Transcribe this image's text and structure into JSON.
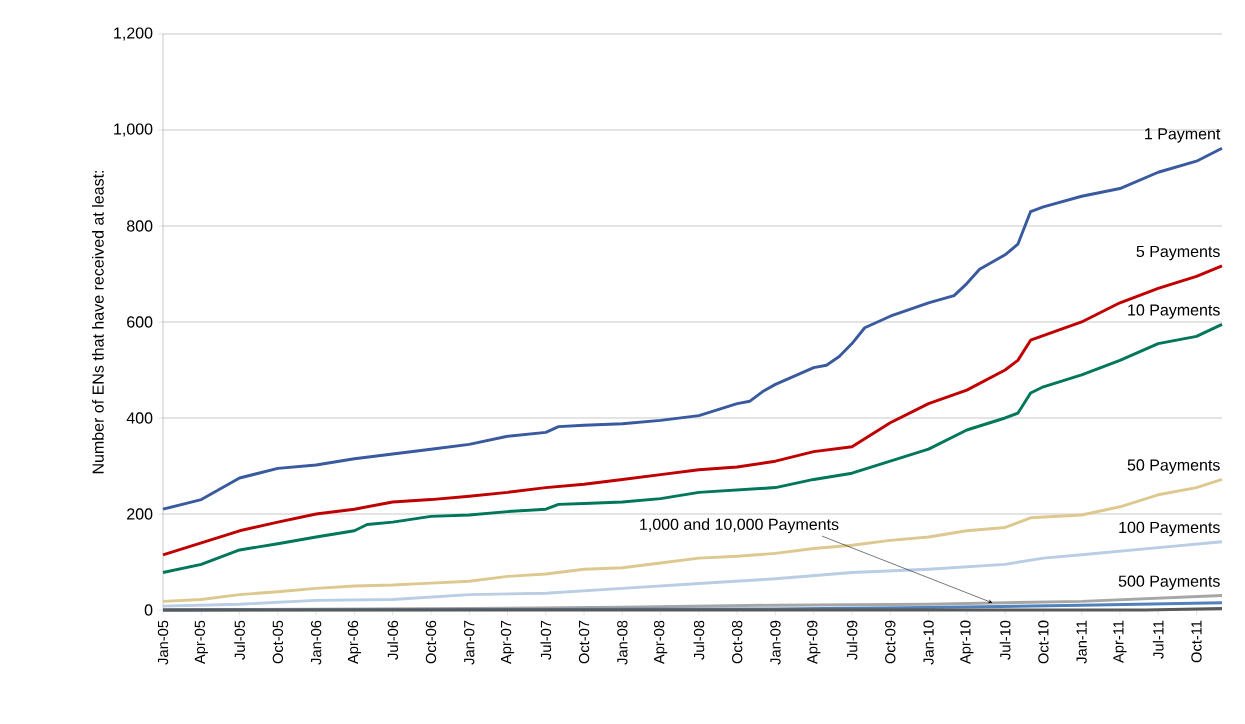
{
  "chart_data": {
    "type": "line",
    "ylabel": "Number of ENs that have received at least:",
    "xlim": [
      "2005-01",
      "2011-12"
    ],
    "xticks": [
      {
        "value": "2005-01",
        "label": "Jan-05"
      },
      {
        "value": "2005-04",
        "label": "Apr-05"
      },
      {
        "value": "2005-07",
        "label": "Jul-05"
      },
      {
        "value": "2005-10",
        "label": "Oct-05"
      },
      {
        "value": "2006-01",
        "label": "Jan-06"
      },
      {
        "value": "2006-04",
        "label": "Apr-06"
      },
      {
        "value": "2006-07",
        "label": "Jul-06"
      },
      {
        "value": "2006-10",
        "label": "Oct-06"
      },
      {
        "value": "2007-01",
        "label": "Jan-07"
      },
      {
        "value": "2007-04",
        "label": "Apr-07"
      },
      {
        "value": "2007-07",
        "label": "Jul-07"
      },
      {
        "value": "2007-10",
        "label": "Oct-07"
      },
      {
        "value": "2008-01",
        "label": "Jan-08"
      },
      {
        "value": "2008-04",
        "label": "Apr-08"
      },
      {
        "value": "2008-07",
        "label": "Jul-08"
      },
      {
        "value": "2008-10",
        "label": "Oct-08"
      },
      {
        "value": "2009-01",
        "label": "Jan-09"
      },
      {
        "value": "2009-04",
        "label": "Apr-09"
      },
      {
        "value": "2009-07",
        "label": "Jul-09"
      },
      {
        "value": "2009-10",
        "label": "Oct-09"
      },
      {
        "value": "2010-01",
        "label": "Jan-10"
      },
      {
        "value": "2010-04",
        "label": "Apr-10"
      },
      {
        "value": "2010-07",
        "label": "Jul-10"
      },
      {
        "value": "2010-10",
        "label": "Oct-10"
      },
      {
        "value": "2011-01",
        "label": "Jan-11"
      },
      {
        "value": "2011-04",
        "label": "Apr-11"
      },
      {
        "value": "2011-07",
        "label": "Jul-11"
      },
      {
        "value": "2011-10",
        "label": "Oct-11"
      }
    ],
    "ylim": [
      0,
      1200
    ],
    "yticks": [
      0,
      200,
      400,
      600,
      800,
      {
        "value": 1000,
        "label": "1,000"
      },
      {
        "value": 1200,
        "label": "1,200"
      }
    ],
    "grid": "y",
    "legend": false,
    "marker": "none",
    "line_style": "solid",
    "series": [
      {
        "name": "1 Payment",
        "color": "#3a5a9f",
        "x": [
          "2005-01",
          "2005-04",
          "2005-07",
          "2005-10",
          "2006-01",
          "2006-04",
          "2006-07",
          "2006-10",
          "2007-01",
          "2007-04",
          "2007-07",
          "2007-08",
          "2007-10",
          "2008-01",
          "2008-04",
          "2008-07",
          "2008-10",
          "2008-11",
          "2008-12",
          "2009-01",
          "2009-04",
          "2009-05",
          "2009-06",
          "2009-07",
          "2009-08",
          "2009-10",
          "2010-01",
          "2010-03",
          "2010-04",
          "2010-05",
          "2010-07",
          "2010-08",
          "2010-09",
          "2010-10",
          "2011-01",
          "2011-04",
          "2011-07",
          "2011-10",
          "2011-12"
        ],
        "values": [
          210,
          230,
          275,
          295,
          302,
          315,
          325,
          335,
          345,
          362,
          370,
          382,
          385,
          388,
          395,
          405,
          430,
          435,
          455,
          470,
          505,
          510,
          528,
          555,
          588,
          612,
          640,
          655,
          680,
          710,
          740,
          762,
          830,
          840,
          862,
          878,
          912,
          935,
          962
        ]
      },
      {
        "name": "5 Payments",
        "color": "#c00000",
        "x": [
          "2005-01",
          "2005-04",
          "2005-07",
          "2005-10",
          "2006-01",
          "2006-04",
          "2006-07",
          "2006-10",
          "2007-01",
          "2007-04",
          "2007-07",
          "2007-10",
          "2008-01",
          "2008-04",
          "2008-07",
          "2008-10",
          "2009-01",
          "2009-04",
          "2009-07",
          "2009-10",
          "2010-01",
          "2010-04",
          "2010-07",
          "2010-08",
          "2010-09",
          "2011-01",
          "2011-04",
          "2011-07",
          "2011-10",
          "2011-12"
        ],
        "values": [
          115,
          140,
          165,
          183,
          200,
          210,
          225,
          230,
          237,
          245,
          255,
          262,
          272,
          282,
          292,
          298,
          310,
          330,
          340,
          390,
          430,
          458,
          500,
          520,
          562,
          600,
          640,
          670,
          695,
          717
        ]
      },
      {
        "name": "10 Payments",
        "color": "#00765a",
        "x": [
          "2005-01",
          "2005-04",
          "2005-07",
          "2005-10",
          "2006-01",
          "2006-04",
          "2006-05",
          "2006-07",
          "2006-10",
          "2007-01",
          "2007-04",
          "2007-07",
          "2007-08",
          "2007-10",
          "2008-01",
          "2008-04",
          "2008-07",
          "2008-10",
          "2009-01",
          "2009-04",
          "2009-07",
          "2009-10",
          "2010-01",
          "2010-04",
          "2010-07",
          "2010-08",
          "2010-09",
          "2010-10",
          "2011-01",
          "2011-04",
          "2011-07",
          "2011-10",
          "2011-12"
        ],
        "values": [
          78,
          95,
          125,
          138,
          152,
          165,
          178,
          183,
          195,
          198,
          205,
          210,
          220,
          222,
          225,
          232,
          245,
          250,
          255,
          272,
          285,
          310,
          335,
          375,
          400,
          410,
          452,
          465,
          490,
          520,
          555,
          570,
          595
        ]
      },
      {
        "name": "50 Payments",
        "color": "#ddc98f",
        "x": [
          "2005-01",
          "2005-04",
          "2005-07",
          "2005-10",
          "2006-01",
          "2006-04",
          "2006-07",
          "2006-10",
          "2007-01",
          "2007-04",
          "2007-07",
          "2007-10",
          "2008-01",
          "2008-04",
          "2008-07",
          "2008-10",
          "2009-01",
          "2009-04",
          "2009-07",
          "2009-10",
          "2010-01",
          "2010-04",
          "2010-07",
          "2010-09",
          "2011-01",
          "2011-04",
          "2011-07",
          "2011-10",
          "2011-12"
        ],
        "values": [
          18,
          22,
          32,
          38,
          45,
          50,
          52,
          56,
          60,
          70,
          75,
          85,
          88,
          98,
          108,
          112,
          118,
          128,
          135,
          145,
          152,
          165,
          172,
          192,
          198,
          215,
          240,
          255,
          272
        ]
      },
      {
        "name": "100 Payments",
        "color": "#b9cde5",
        "x": [
          "2005-01",
          "2005-07",
          "2006-01",
          "2006-07",
          "2007-01",
          "2007-07",
          "2008-01",
          "2008-07",
          "2009-01",
          "2009-07",
          "2010-01",
          "2010-07",
          "2010-10",
          "2011-01",
          "2011-07",
          "2011-12"
        ],
        "values": [
          8,
          12,
          20,
          22,
          32,
          35,
          45,
          55,
          65,
          78,
          85,
          95,
          108,
          115,
          130,
          142
        ]
      },
      {
        "name": "500 Payments",
        "color": "#a6a6a6",
        "x": [
          "2005-01",
          "2007-01",
          "2008-01",
          "2009-01",
          "2010-01",
          "2011-01",
          "2011-12"
        ],
        "values": [
          0,
          3,
          6,
          10,
          12,
          18,
          30
        ]
      },
      {
        "color": "#4f81bd",
        "x": [
          "2005-01",
          "2009-01",
          "2010-01",
          "2011-01",
          "2011-12"
        ],
        "values": [
          0,
          2,
          5,
          10,
          15
        ]
      },
      {
        "color": "#595959",
        "x": [
          "2005-01",
          "2011-06",
          "2011-12"
        ],
        "values": [
          0,
          0,
          3
        ]
      }
    ],
    "annotations": [
      {
        "text": "1,000 and 10,000 Payments",
        "x": "2010-06",
        "y": 15
      }
    ]
  }
}
